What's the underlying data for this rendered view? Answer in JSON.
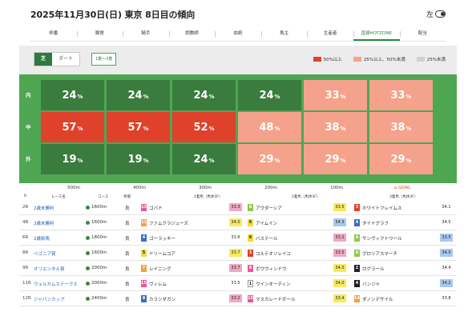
{
  "header": {
    "title": "2025年11月30日(日) 東京 8日目の傾向",
    "toggle_label": "左"
  },
  "tabs": [
    "枠番",
    "脚質",
    "騎手",
    "調教師",
    "血統",
    "馬主",
    "生産者",
    "直線HOTZONE",
    "配当"
  ],
  "active_tab": 7,
  "hotzone": {
    "surfaces": [
      "芝",
      "ダート"
    ],
    "active_surface": 0,
    "rank_filter": "1着〜3着",
    "legend": [
      {
        "label": "50%以上",
        "color": "#e0412a"
      },
      {
        "label": "25%以上、50%未満",
        "color": "#f4a28b"
      },
      {
        "label": "25%未満",
        "color": "#d0d0d0"
      }
    ],
    "rows": [
      {
        "label": "内",
        "cells": [
          {
            "v": "24",
            "u": "%",
            "c": "dark"
          },
          {
            "v": "24",
            "u": "%",
            "c": "dark"
          },
          {
            "v": "24",
            "u": "%",
            "c": "dark"
          },
          {
            "v": "24",
            "u": "%",
            "c": "dark"
          },
          {
            "v": "33",
            "u": "%",
            "c": "pink"
          },
          {
            "v": "33",
            "u": "%",
            "c": "pink"
          }
        ]
      },
      {
        "label": "中",
        "cells": [
          {
            "v": "57",
            "u": "%",
            "c": "red"
          },
          {
            "v": "57",
            "u": "%",
            "c": "red"
          },
          {
            "v": "52",
            "u": "%",
            "c": "red"
          },
          {
            "v": "48",
            "u": "%",
            "c": "pink"
          },
          {
            "v": "38",
            "u": "%",
            "c": "pink"
          },
          {
            "v": "38",
            "u": "%",
            "c": "pink"
          }
        ]
      },
      {
        "label": "外",
        "cells": [
          {
            "v": "19",
            "u": "%",
            "c": "dark"
          },
          {
            "v": "19",
            "u": "%",
            "c": "dark"
          },
          {
            "v": "24",
            "u": "%",
            "c": "dark"
          },
          {
            "v": "29",
            "u": "%",
            "c": "pink"
          },
          {
            "v": "29",
            "u": "%",
            "c": "pink"
          },
          {
            "v": "29",
            "u": "%",
            "c": "pink"
          }
        ]
      }
    ],
    "distances": [
      "500m",
      "400m",
      "300m",
      "200m",
      "100m",
      "GOAL"
    ]
  },
  "results": {
    "headers": {
      "r": "R",
      "race": "レース名",
      "course": "コース",
      "baba": "馬場",
      "first": "1着馬（馬体3F）",
      "second": "2着馬（馬体3F）",
      "third": "3着馬（馬体3F）"
    },
    "rows": [
      {
        "r": "2R",
        "race": "2歳未勝利",
        "course": "1600m",
        "baba": "良",
        "h1": {
          "n": "13",
          "name": "ゴバド",
          "t": "33.3",
          "nc": "#e8579d",
          "tc": "pink"
        },
        "h2": {
          "n": "8",
          "name": "アウダーシア",
          "t": "33.5",
          "nc": "#8fc74f",
          "tc": "yellow"
        },
        "h3": {
          "n": "3",
          "name": "ホワイトフレイムス",
          "t": "34.1",
          "nc": "#e0412a",
          "tc": "none"
        }
      },
      {
        "r": "4R",
        "race": "2歳未勝利",
        "course": "1600m",
        "baba": "良",
        "h1": {
          "n": "11",
          "name": "ファムクラジューズ",
          "t": "34.0",
          "nc": "#f4a03c",
          "tc": "yellow"
        },
        "h2": {
          "n": "6",
          "name": "アイムイン",
          "t": "34.3",
          "nc": "#f2dc3a",
          "tc": "blue"
        },
        "h3": {
          "n": "4",
          "name": "タイドグラフ",
          "t": "34.5",
          "nc": "#3a6cc8",
          "tc": "none"
        }
      },
      {
        "r": "6R",
        "race": "2歳新馬",
        "course": "1800m",
        "baba": "良",
        "h1": {
          "n": "4",
          "name": "ゴーラッキー",
          "t": "33.6",
          "nc": "#3a6cc8",
          "tc": "none"
        },
        "h2": {
          "n": "6",
          "name": "バステール",
          "t": "33.2",
          "nc": "#f2dc3a",
          "tc": "pink"
        },
        "h3": {
          "n": "8",
          "name": "サンヴィクトワール",
          "t": "33.5",
          "nc": "#8fc74f",
          "tc": "blue"
        }
      },
      {
        "r": "8R",
        "race": "ベゴニア賞",
        "course": "1600m",
        "baba": "良",
        "h1": {
          "n": "5",
          "name": "ドリームコア",
          "t": "33.7",
          "nc": "#f2dc3a",
          "tc": "yellow"
        },
        "h2": {
          "n": "3",
          "name": "コルテオソレイユ",
          "t": "33.5",
          "nc": "#e0412a",
          "tc": "pink"
        },
        "h3": {
          "n": "8",
          "name": "グロリアスマーチ",
          "t": "34.0",
          "nc": "#8fc74f",
          "tc": "blue"
        }
      },
      {
        "r": "9R",
        "race": "オリエンタル賞",
        "course": "2000m",
        "baba": "良",
        "h1": {
          "n": "7",
          "name": "レイニング",
          "t": "33.7",
          "nc": "#f4a03c",
          "tc": "pink"
        },
        "h2": {
          "n": "8",
          "name": "ボウウィンドウ",
          "t": "34.0",
          "nc": "#e8579d",
          "tc": "yellow"
        },
        "h3": {
          "n": "2",
          "name": "ログラール",
          "t": "34.4",
          "nc": "#222222",
          "tc": "none"
        }
      },
      {
        "r": "11R",
        "race": "ウェルカムステークス",
        "course": "2000m",
        "baba": "良",
        "h1": {
          "n": "15",
          "name": "ヴィレム",
          "t": "33.5",
          "nc": "#e8579d",
          "tc": "none"
        },
        "h2": {
          "n": "1",
          "name": "ウインオーディン",
          "t": "34.0",
          "nc": "#ffffff",
          "tc": "yellow"
        },
        "h3": {
          "n": "4",
          "name": "バンジャ",
          "t": "34.2",
          "nc": "#222222",
          "tc": "blue"
        }
      },
      {
        "r": "12R",
        "race": "ジャパンカップ",
        "course": "2400m",
        "baba": "良",
        "h1": {
          "n": "8",
          "name": "カランダガン",
          "t": "33.2",
          "nc": "#3a6cc8",
          "tc": "pink"
        },
        "h2": {
          "n": "15",
          "name": "マスカレードボール",
          "t": "33.4",
          "nc": "#e8579d",
          "tc": "yellow"
        },
        "h3": {
          "n": "14",
          "name": "ダノンデサイル",
          "t": "33.8",
          "nc": "#f4a03c",
          "tc": "none"
        }
      }
    ]
  }
}
